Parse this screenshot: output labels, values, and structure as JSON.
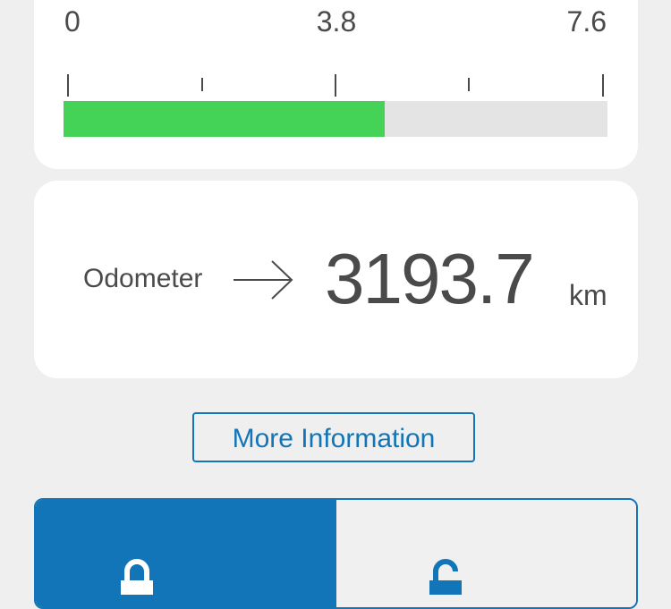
{
  "gauge": {
    "min_label": "0",
    "mid_label": "3.8",
    "max_label": "7.6",
    "min": 0,
    "max": 7.6,
    "value_fraction": 0.59,
    "fill_color": "#44d356",
    "track_color": "#e4e4e4"
  },
  "odometer": {
    "label": "Odometer",
    "value": "3193.7",
    "unit": "km",
    "arrow_icon": "arrow-right-icon"
  },
  "more_info_button": {
    "label": "More Information",
    "color": "#1175b8"
  },
  "segmented_control": {
    "active_color": "#1175b8",
    "segments": [
      {
        "icon": "lock-icon",
        "active": true
      },
      {
        "icon": "unlock-icon",
        "active": false
      }
    ]
  }
}
